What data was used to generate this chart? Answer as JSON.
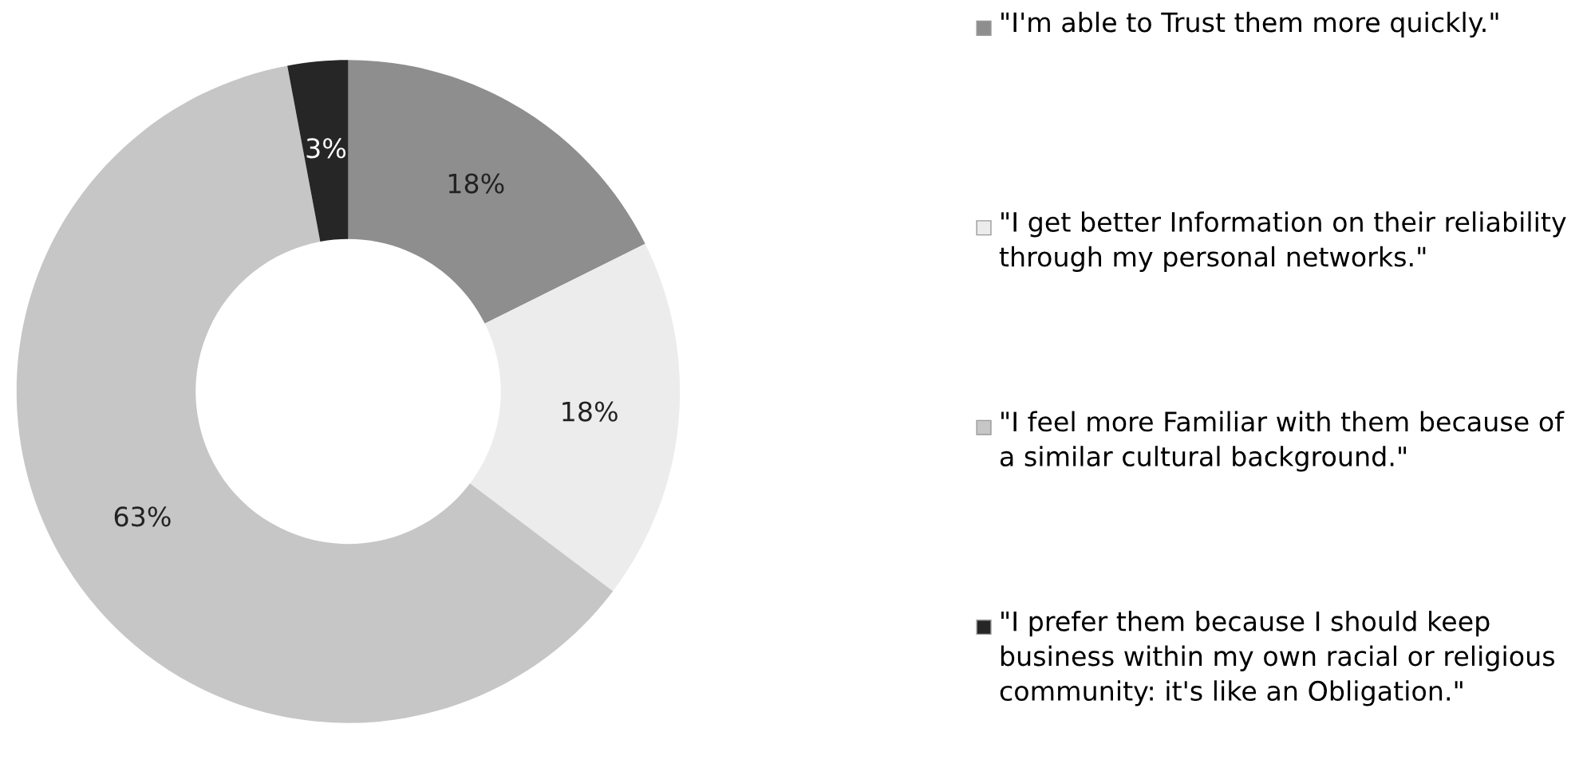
{
  "chart_data": {
    "type": "donut",
    "categories": [
      "\"I'm able to Trust them more quickly.\"",
      "\"I get better Information on their reliability through my personal networks.\"",
      "\"I feel more Familiar with them because of a similar cultural background.\"",
      "\"I prefer them because I should keep business within my own racial or religious community: it's like an Obligation.\""
    ],
    "values": [
      18,
      18,
      63,
      3
    ],
    "colors": [
      "#8e8e8e",
      "#ececec",
      "#c6c6c6",
      "#262626"
    ],
    "value_labels": [
      "18%",
      "18%",
      "63%",
      "3%"
    ],
    "legend": "right"
  }
}
